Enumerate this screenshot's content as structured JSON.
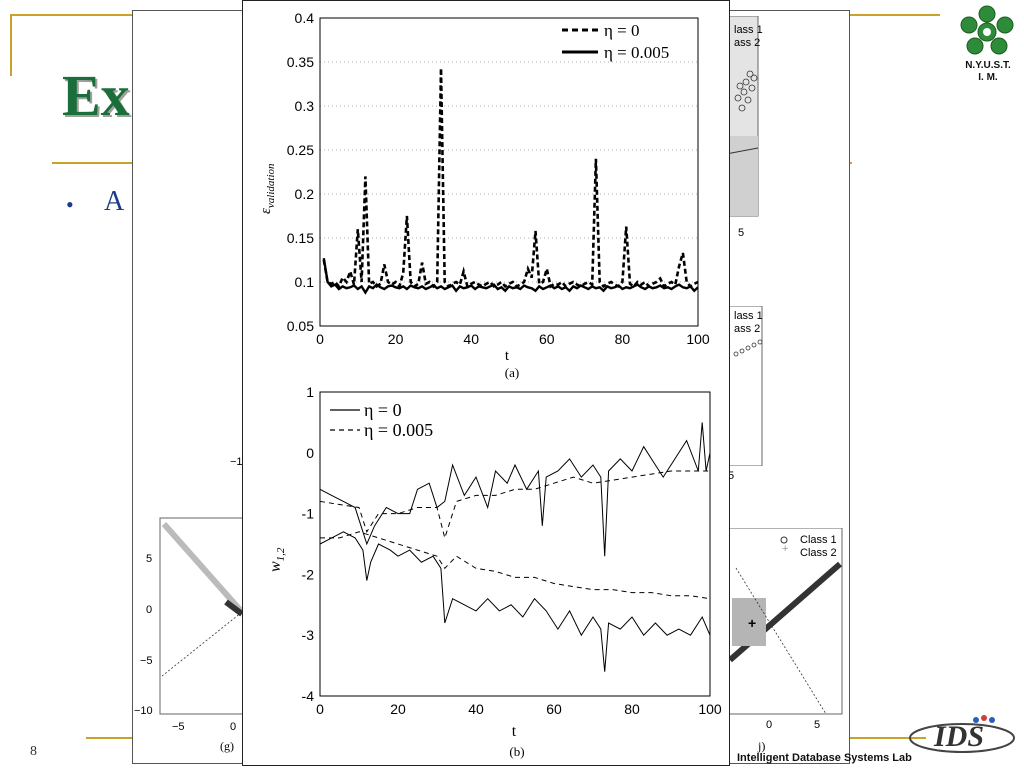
{
  "slide": {
    "title_fragment": "Ex",
    "bullet_fragment": "A",
    "page_number": "8",
    "footer_lab": "Intelligent Database Systems Lab",
    "logo_text_1": "N.Y.U.S.T.",
    "logo_text_2": "I. M."
  },
  "background_figure": {
    "legend_top": [
      "lass 1",
      "ass 2"
    ],
    "legend_mid": [
      "lass 1",
      "ass 2"
    ],
    "legend_bottom": [
      "Class 1",
      "Class 2"
    ],
    "label_g": "(g)",
    "label_j": "j)",
    "g_yticks": [
      "5",
      "0",
      "−5",
      "−10"
    ],
    "g_xticks": [
      "−5",
      "0"
    ],
    "j_xticks": [
      "0",
      "5"
    ],
    "misc_ticks": [
      "5",
      "−1",
      "5"
    ]
  },
  "chart_data": [
    {
      "type": "line",
      "panel_label": "(a)",
      "xlabel": "t",
      "ylabel": "ε",
      "ylabel_sub": "validation",
      "xlim": [
        0,
        100
      ],
      "ylim": [
        0.05,
        0.4
      ],
      "xticks": [
        "0",
        "20",
        "40",
        "60",
        "80",
        "100"
      ],
      "yticks": [
        "0.05",
        "0.1",
        "0.15",
        "0.2",
        "0.25",
        "0.3",
        "0.35",
        "0.4"
      ],
      "grid": "horizontal dotted",
      "legend_placement": "top-right",
      "series": [
        {
          "name": "η = 0",
          "style": "dashed-bold",
          "x": [
            1,
            2,
            3,
            4,
            5,
            6,
            7,
            8,
            9,
            10,
            11,
            12,
            13,
            14,
            15,
            16,
            17,
            18,
            19,
            20,
            21,
            22,
            23,
            24,
            25,
            26,
            27,
            28,
            29,
            30,
            31,
            32,
            33,
            34,
            35,
            36,
            37,
            38,
            39,
            40,
            41,
            42,
            43,
            44,
            45,
            46,
            47,
            48,
            49,
            50,
            51,
            52,
            53,
            54,
            55,
            56,
            57,
            58,
            59,
            60,
            61,
            62,
            63,
            64,
            65,
            66,
            67,
            68,
            69,
            70,
            71,
            72,
            73,
            74,
            75,
            76,
            77,
            78,
            79,
            80,
            81,
            82,
            83,
            84,
            85,
            86,
            87,
            88,
            89,
            90,
            91,
            92,
            93,
            94,
            95,
            96,
            97,
            98,
            99,
            100
          ],
          "values": [
            0.125,
            0.1,
            0.098,
            0.1,
            0.095,
            0.105,
            0.1,
            0.112,
            0.097,
            0.16,
            0.1,
            0.22,
            0.098,
            0.1,
            0.095,
            0.098,
            0.12,
            0.1,
            0.097,
            0.1,
            0.095,
            0.11,
            0.175,
            0.1,
            0.095,
            0.098,
            0.122,
            0.098,
            0.1,
            0.095,
            0.1,
            0.343,
            0.1,
            0.095,
            0.098,
            0.1,
            0.097,
            0.112,
            0.095,
            0.098,
            0.1,
            0.097,
            0.095,
            0.098,
            0.1,
            0.095,
            0.097,
            0.1,
            0.095,
            0.098,
            0.1,
            0.095,
            0.097,
            0.1,
            0.115,
            0.105,
            0.158,
            0.098,
            0.1,
            0.115,
            0.095,
            0.098,
            0.097,
            0.1,
            0.095,
            0.098,
            0.1,
            0.097,
            0.095,
            0.098,
            0.1,
            0.097,
            0.24,
            0.1,
            0.095,
            0.098,
            0.1,
            0.097,
            0.095,
            0.1,
            0.163,
            0.098,
            0.095,
            0.1,
            0.097,
            0.1,
            0.095,
            0.098,
            0.1,
            0.104,
            0.095,
            0.098,
            0.1,
            0.097,
            0.118,
            0.133,
            0.1,
            0.095,
            0.098,
            0.1
          ]
        },
        {
          "name": "η = 0.005",
          "style": "solid-bold",
          "x": [
            1,
            2,
            3,
            4,
            5,
            6,
            7,
            8,
            9,
            10,
            11,
            12,
            13,
            14,
            15,
            16,
            17,
            18,
            19,
            20,
            21,
            22,
            23,
            24,
            25,
            26,
            27,
            28,
            29,
            30,
            31,
            32,
            33,
            34,
            35,
            36,
            37,
            38,
            39,
            40,
            41,
            42,
            43,
            44,
            45,
            46,
            47,
            48,
            49,
            50,
            51,
            52,
            53,
            54,
            55,
            56,
            57,
            58,
            59,
            60,
            61,
            62,
            63,
            64,
            65,
            66,
            67,
            68,
            69,
            70,
            71,
            72,
            73,
            74,
            75,
            76,
            77,
            78,
            79,
            80,
            81,
            82,
            83,
            84,
            85,
            86,
            87,
            88,
            89,
            90,
            91,
            92,
            93,
            94,
            95,
            96,
            97,
            98,
            99,
            100
          ],
          "values": [
            0.127,
            0.1,
            0.095,
            0.097,
            0.092,
            0.095,
            0.093,
            0.094,
            0.096,
            0.092,
            0.095,
            0.088,
            0.095,
            0.093,
            0.097,
            0.094,
            0.092,
            0.095,
            0.096,
            0.094,
            0.093,
            0.095,
            0.092,
            0.096,
            0.094,
            0.093,
            0.095,
            0.092,
            0.094,
            0.096,
            0.093,
            0.095,
            0.092,
            0.094,
            0.096,
            0.09,
            0.095,
            0.093,
            0.094,
            0.096,
            0.092,
            0.095,
            0.094,
            0.093,
            0.095,
            0.097,
            0.092,
            0.094,
            0.09,
            0.095,
            0.093,
            0.094,
            0.092,
            0.096,
            0.094,
            0.093,
            0.09,
            0.095,
            0.092,
            0.094,
            0.096,
            0.093,
            0.095,
            0.092,
            0.094,
            0.09,
            0.095,
            0.093,
            0.096,
            0.094,
            0.092,
            0.095,
            0.093,
            0.094,
            0.09,
            0.095,
            0.093,
            0.094,
            0.096,
            0.092,
            0.094,
            0.093,
            0.095,
            0.097,
            0.094,
            0.092,
            0.095,
            0.093,
            0.094,
            0.096,
            0.093,
            0.094,
            0.092,
            0.095,
            0.097,
            0.094,
            0.093,
            0.095,
            0.09,
            0.094
          ]
        }
      ]
    },
    {
      "type": "line",
      "panel_label": "(b)",
      "xlabel": "t",
      "ylabel": "w",
      "ylabel_sub": "1,2",
      "xlim": [
        0,
        100
      ],
      "ylim": [
        -4,
        1
      ],
      "xticks": [
        "0",
        "20",
        "40",
        "60",
        "80",
        "100"
      ],
      "yticks": [
        "-4",
        "-3",
        "-2",
        "-1",
        "0",
        "1"
      ],
      "grid": "off",
      "legend_placement": "top-left",
      "series": [
        {
          "name": "η = 0",
          "style": "solid-thin",
          "group": "upper",
          "x": [
            0,
            3,
            6,
            9,
            10,
            11,
            12,
            14,
            17,
            20,
            23,
            25,
            28,
            30,
            32,
            34,
            37,
            40,
            43,
            45,
            48,
            50,
            53,
            56,
            57,
            58,
            61,
            64,
            67,
            70,
            72,
            73,
            74,
            77,
            80,
            83,
            86,
            88,
            91,
            94,
            97,
            98,
            99,
            100
          ],
          "values": [
            -0.6,
            -0.7,
            -0.8,
            -0.9,
            -1.1,
            -1.3,
            -1.5,
            -1.2,
            -0.9,
            -1.0,
            -1.0,
            -0.6,
            -0.5,
            -0.9,
            -0.8,
            -0.2,
            -0.7,
            -0.4,
            -0.9,
            -0.3,
            -0.5,
            -0.2,
            -0.6,
            -0.3,
            -1.2,
            -0.4,
            -0.3,
            -0.1,
            -0.4,
            -0.2,
            -0.4,
            -1.7,
            -0.3,
            -0.1,
            -0.3,
            0.1,
            -0.2,
            -0.4,
            -0.1,
            0.2,
            -0.3,
            0.5,
            -0.3,
            0.0
          ]
        },
        {
          "name": "η = 0.005",
          "style": "dashed-thin",
          "group": "upper",
          "x": [
            0,
            5,
            10,
            12,
            15,
            20,
            25,
            30,
            32,
            35,
            40,
            45,
            50,
            55,
            60,
            65,
            70,
            75,
            80,
            85,
            90,
            95,
            100
          ],
          "values": [
            -0.8,
            -0.85,
            -0.9,
            -1.3,
            -1.0,
            -1.0,
            -0.9,
            -0.9,
            -1.4,
            -0.8,
            -0.7,
            -0.7,
            -0.6,
            -0.6,
            -0.5,
            -0.4,
            -0.5,
            -0.45,
            -0.4,
            -0.35,
            -0.3,
            -0.3,
            -0.3
          ]
        },
        {
          "name": "",
          "style": "solid-thin",
          "group": "lower",
          "x": [
            0,
            3,
            6,
            9,
            11,
            12,
            13,
            15,
            18,
            20,
            23,
            26,
            29,
            31,
            32,
            34,
            37,
            40,
            43,
            46,
            49,
            52,
            55,
            58,
            61,
            64,
            67,
            70,
            72,
            73,
            74,
            77,
            80,
            83,
            86,
            89,
            92,
            95,
            98,
            100
          ],
          "values": [
            -1.5,
            -1.4,
            -1.3,
            -1.4,
            -1.6,
            -2.1,
            -1.8,
            -1.5,
            -1.6,
            -1.7,
            -1.6,
            -1.8,
            -1.7,
            -1.9,
            -2.8,
            -2.4,
            -2.5,
            -2.6,
            -2.4,
            -2.6,
            -2.5,
            -2.7,
            -2.4,
            -2.6,
            -2.9,
            -2.6,
            -3.0,
            -2.7,
            -2.9,
            -3.6,
            -2.8,
            -2.9,
            -2.7,
            -3.0,
            -2.8,
            -3.0,
            -2.9,
            -3.0,
            -2.7,
            -3.0
          ]
        },
        {
          "name": "",
          "style": "dashed-thin",
          "group": "lower",
          "x": [
            0,
            5,
            10,
            15,
            20,
            25,
            30,
            32,
            35,
            40,
            45,
            50,
            55,
            60,
            65,
            70,
            75,
            80,
            85,
            90,
            95,
            100
          ],
          "values": [
            -1.4,
            -1.4,
            -1.3,
            -1.4,
            -1.5,
            -1.6,
            -1.7,
            -1.9,
            -1.7,
            -1.9,
            -1.95,
            -2.05,
            -2.05,
            -2.15,
            -2.2,
            -2.25,
            -2.25,
            -2.3,
            -2.3,
            -2.35,
            -2.35,
            -2.4
          ]
        }
      ]
    }
  ]
}
